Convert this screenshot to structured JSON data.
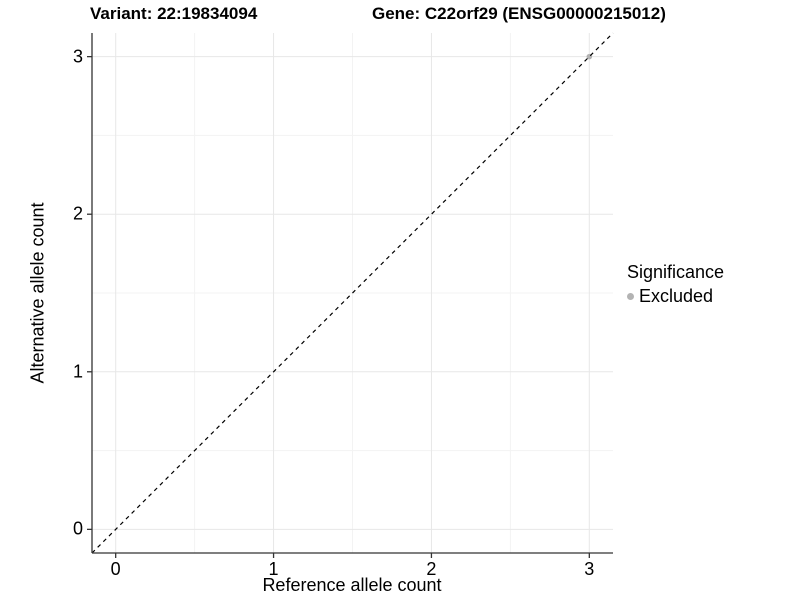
{
  "colors": {
    "background": "#ffffff",
    "grid_major": "#e7e7e7",
    "grid_minor": "#f3f3f3",
    "axis_line": "#333333",
    "text": "#000000",
    "identity_line": "#000000",
    "point_excluded": "#b3b3b3"
  },
  "chart_data": {
    "type": "scatter",
    "title_left": "Variant: 22:19834094",
    "title_right": "Gene: C22orf29 (ENSG00000215012)",
    "xlabel": "Reference allele count",
    "ylabel": "Alternative allele count",
    "xlim": [
      -0.15,
      3.15
    ],
    "ylim": [
      -0.15,
      3.15
    ],
    "xticks": [
      0,
      1,
      2,
      3
    ],
    "yticks": [
      0,
      1,
      2,
      3
    ],
    "x_minor_ticks": [
      0.5,
      1.5,
      2.5
    ],
    "y_minor_ticks": [
      0.5,
      1.5,
      2.5
    ],
    "grid": true,
    "identity_line": {
      "slope": 1,
      "intercept": 0,
      "style": "dashed"
    },
    "series": [
      {
        "name": "Excluded",
        "color": "#b3b3b3",
        "points": [
          {
            "x": 3,
            "y": 3
          }
        ]
      }
    ],
    "legend": {
      "position": "right",
      "title": "Significance",
      "entries": [
        {
          "label": "Excluded",
          "color": "#b3b3b3"
        }
      ]
    }
  }
}
